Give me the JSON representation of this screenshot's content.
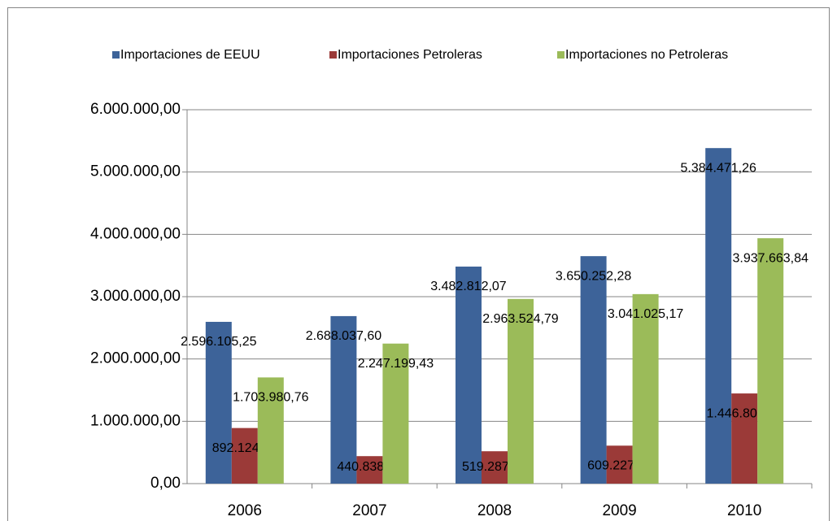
{
  "chart_data": {
    "type": "bar",
    "categories": [
      "2006",
      "2007",
      "2008",
      "2009",
      "2010"
    ],
    "series": [
      {
        "name": "Importaciones de EEUU",
        "color": "#3d6399",
        "values": [
          2596105.25,
          2688037.6,
          3482812.07,
          3650252.28,
          5384471.26
        ],
        "value_labels": [
          "2.596.105,25",
          "2.688.037,60",
          "3.482.812,07",
          "3.650.252,28",
          "5.384.471,26"
        ]
      },
      {
        "name": "Importaciones Petroleras",
        "color": "#9b3a38",
        "values": [
          892124.49,
          440838.17,
          519287.28,
          609227.11,
          1446807.42
        ],
        "value_labels": [
          "892.124,49",
          "440.838,17",
          "519.287,28",
          "609.227,11",
          "1.446.807,42"
        ]
      },
      {
        "name": "Importaciones no Petroleras",
        "color": "#9bbb59",
        "values": [
          1703980.76,
          2247199.43,
          2963524.79,
          3041025.17,
          3937663.84
        ],
        "value_labels": [
          "1.703.980,76",
          "2.247.199,43",
          "2.963.524,79",
          "3.041.025,17",
          "3.937.663,84"
        ]
      }
    ],
    "ylim": [
      0,
      6000000
    ],
    "yticks": [
      {
        "value": 0,
        "label": "0,00"
      },
      {
        "value": 1000000,
        "label": "1.000.000,00"
      },
      {
        "value": 2000000,
        "label": "2.000.000,00"
      },
      {
        "value": 3000000,
        "label": "3.000.000,00"
      },
      {
        "value": 4000000,
        "label": "4.000.000,00"
      },
      {
        "value": 5000000,
        "label": "5.000.000,00"
      },
      {
        "value": 6000000,
        "label": "6.000.000,00"
      }
    ],
    "grid": true,
    "legend": "top"
  }
}
